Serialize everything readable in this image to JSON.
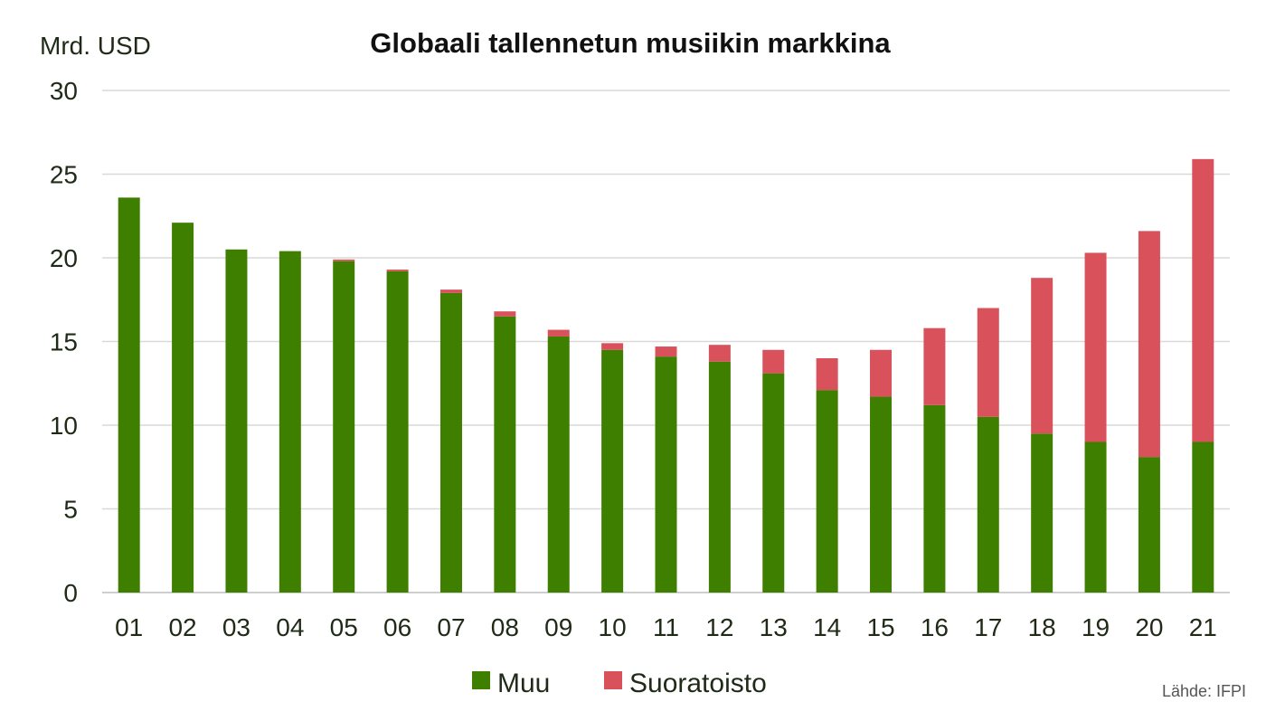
{
  "chart_data": {
    "type": "bar",
    "stacked": true,
    "title": "Globaali tallennetun musiikin markkina",
    "ylabel": "Mrd. USD",
    "xlabel": "",
    "ylim": [
      0,
      30
    ],
    "yticks": [
      "0",
      "5",
      "10",
      "15",
      "20",
      "25",
      "30"
    ],
    "grid": true,
    "legend_placement": "bottom-center",
    "categories": [
      "01",
      "02",
      "03",
      "04",
      "05",
      "06",
      "07",
      "08",
      "09",
      "10",
      "11",
      "12",
      "13",
      "14",
      "15",
      "16",
      "17",
      "18",
      "19",
      "20",
      "21"
    ],
    "series": [
      {
        "name": "Muu",
        "color": "#3f7f00",
        "values": [
          23.6,
          22.1,
          20.5,
          20.4,
          19.8,
          19.2,
          17.9,
          16.5,
          15.3,
          14.5,
          14.1,
          13.8,
          13.1,
          12.1,
          11.7,
          11.2,
          10.5,
          9.5,
          9.0,
          8.1,
          9.0
        ]
      },
      {
        "name": "Suoratoisto",
        "color": "#d9515a",
        "values": [
          0.0,
          0.0,
          0.0,
          0.0,
          0.1,
          0.1,
          0.2,
          0.3,
          0.4,
          0.4,
          0.6,
          1.0,
          1.4,
          1.9,
          2.8,
          4.6,
          6.5,
          9.3,
          11.3,
          13.5,
          16.9
        ]
      }
    ],
    "source": "Lähde: IFPI"
  }
}
